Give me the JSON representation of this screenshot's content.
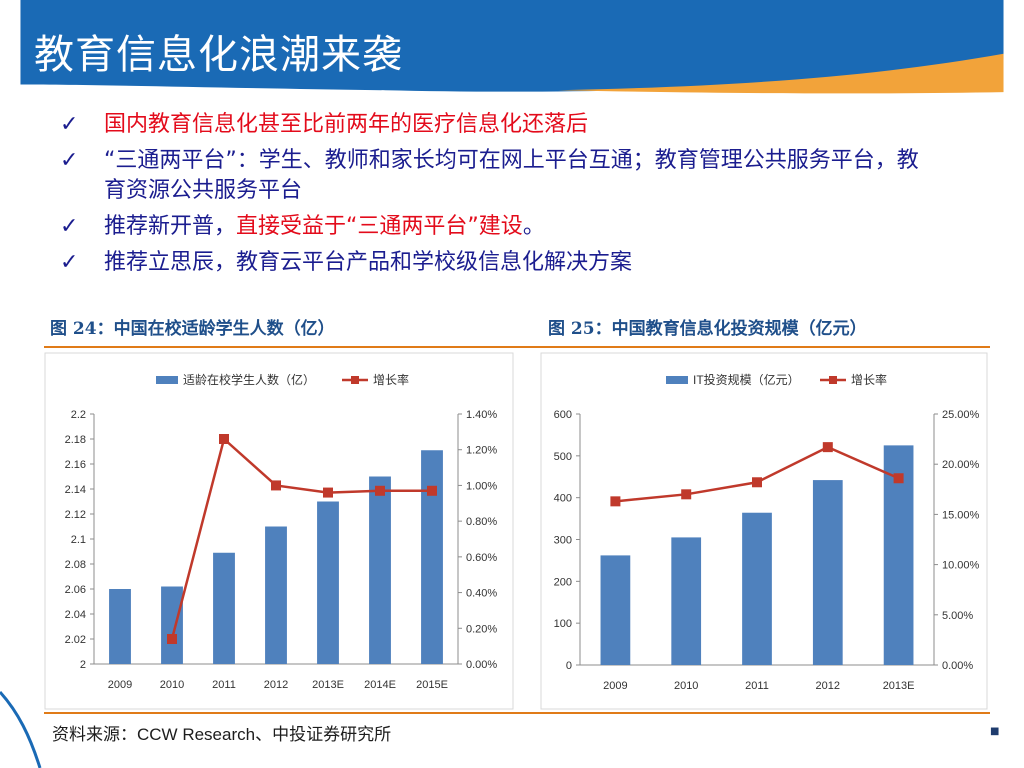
{
  "slide": {
    "title": "教育信息化浪潮来袭",
    "bullets": [
      {
        "icon": "check-icon",
        "check": "✓",
        "parts": [
          {
            "text": "国内教育信息化甚至比前两年的医疗信息化还落后",
            "color": "red"
          }
        ]
      },
      {
        "icon": "check-icon",
        "check": "✓",
        "parts": [
          {
            "text": "“三通两平台”：学生、教师和家长均可在网上平台互通；教育管理公共服务平台，教育资源公共服务平台",
            "color": "blue"
          }
        ]
      },
      {
        "icon": "check-icon",
        "check": "✓",
        "parts": [
          {
            "text": "推荐新开普，",
            "color": "blue"
          },
          {
            "text": "直接受益于“三通两平台”建设",
            "color": "red"
          },
          {
            "text": "。",
            "color": "blue"
          }
        ]
      },
      {
        "icon": "check-icon",
        "check": "✓",
        "parts": [
          {
            "text": "推荐立思辰，教育云平台产品和学校级信息化解决方案",
            "color": "blue"
          }
        ]
      }
    ],
    "figure_titles": [
      "图 24：中国在校适龄学生人数（亿）",
      "图 25：中国教育信息化投资规模（亿元）"
    ],
    "source": "资料来源：CCW Research、中投证券研究所",
    "colors": {
      "bar": "#4f81bd",
      "line": "#c0392b",
      "header_blue": "#1a6ab5",
      "header_orange": "#f2a33a",
      "rule_orange": "#e07b18"
    }
  },
  "chart_data": [
    {
      "type": "bar",
      "categories": [
        "2009",
        "2010",
        "2011",
        "2012",
        "2013E",
        "2014E",
        "2015E"
      ],
      "series": [
        {
          "name": "适龄在校学生人数（亿）",
          "type": "bar",
          "axis": "left",
          "values": [
            2.06,
            2.062,
            2.089,
            2.11,
            2.13,
            2.15,
            2.171
          ]
        },
        {
          "name": "增长率",
          "type": "line",
          "axis": "right",
          "values": [
            null,
            0.14,
            1.26,
            1.0,
            0.96,
            0.97,
            0.97
          ]
        }
      ],
      "y_left": {
        "min": 2.0,
        "max": 2.2,
        "ticks": [
          "2",
          "2.02",
          "2.04",
          "2.06",
          "2.08",
          "2.1",
          "2.12",
          "2.14",
          "2.16",
          "2.18",
          "2.2"
        ]
      },
      "y_right": {
        "min": 0,
        "max": 1.4,
        "ticks": [
          "0.00%",
          "0.20%",
          "0.40%",
          "0.60%",
          "0.80%",
          "1.00%",
          "1.20%",
          "1.40%"
        ]
      },
      "legend_position": "top"
    },
    {
      "type": "bar",
      "categories": [
        "2009",
        "2010",
        "2011",
        "2012",
        "2013E"
      ],
      "series": [
        {
          "name": "IT投资规模（亿元）",
          "type": "bar",
          "axis": "left",
          "values": [
            262,
            305,
            364,
            442,
            525
          ]
        },
        {
          "name": "增长率",
          "type": "line",
          "axis": "right",
          "values": [
            16.3,
            17.0,
            18.2,
            21.7,
            18.6
          ]
        }
      ],
      "y_left": {
        "min": 0,
        "max": 600,
        "ticks": [
          "0",
          "100",
          "200",
          "300",
          "400",
          "500",
          "600"
        ]
      },
      "y_right": {
        "min": 0,
        "max": 25,
        "ticks": [
          "0.00%",
          "5.00%",
          "10.00%",
          "15.00%",
          "20.00%",
          "25.00%"
        ]
      },
      "legend_position": "top"
    }
  ]
}
